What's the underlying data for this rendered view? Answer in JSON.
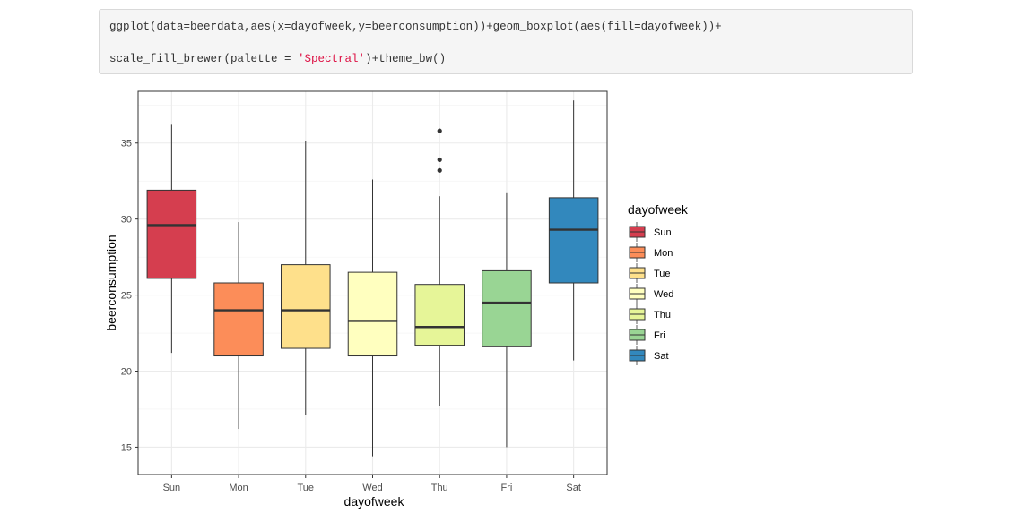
{
  "code": {
    "line1": "ggplot(data=beerdata,aes(x=dayofweek,y=beerconsumption))+geom_boxplot(aes(fill=dayofweek))+",
    "line2_prefix": "scale_fill_brewer(palette = ",
    "line2_string": "'Spectral'",
    "line2_suffix": ")+theme_bw()"
  },
  "chart_data": {
    "type": "boxplot",
    "xlabel": "dayofweek",
    "ylabel": "beerconsumption",
    "ylim": [
      13.2,
      38.4
    ],
    "y_ticks": [
      15,
      20,
      25,
      30,
      35
    ],
    "grid": true,
    "legend": {
      "title": "dayofweek",
      "placement": "right"
    },
    "categories": [
      "Sun",
      "Mon",
      "Tue",
      "Wed",
      "Thu",
      "Fri",
      "Sat"
    ],
    "colors": [
      "#d53e4f",
      "#fc8d59",
      "#fee08b",
      "#ffffbf",
      "#e6f598",
      "#99d594",
      "#3288bd"
    ],
    "boxes": [
      {
        "category": "Sun",
        "min": 21.2,
        "q1": 26.1,
        "median": 29.6,
        "q3": 31.9,
        "max": 36.2,
        "outliers": []
      },
      {
        "category": "Mon",
        "min": 16.2,
        "q1": 21.0,
        "median": 24.0,
        "q3": 25.8,
        "max": 29.8,
        "outliers": []
      },
      {
        "category": "Tue",
        "min": 17.1,
        "q1": 21.5,
        "median": 24.0,
        "q3": 27.0,
        "max": 35.1,
        "outliers": []
      },
      {
        "category": "Wed",
        "min": 14.4,
        "q1": 21.0,
        "median": 23.3,
        "q3": 26.5,
        "max": 32.6,
        "outliers": []
      },
      {
        "category": "Thu",
        "min": 17.7,
        "q1": 21.7,
        "median": 22.9,
        "q3": 25.7,
        "max": 31.5,
        "outliers": [
          33.2,
          33.9,
          35.8
        ]
      },
      {
        "category": "Fri",
        "min": 15.0,
        "q1": 21.6,
        "median": 24.5,
        "q3": 26.6,
        "max": 31.7,
        "outliers": []
      },
      {
        "category": "Sat",
        "min": 20.7,
        "q1": 25.8,
        "median": 29.3,
        "q3": 31.4,
        "max": 37.8,
        "outliers": []
      }
    ]
  }
}
